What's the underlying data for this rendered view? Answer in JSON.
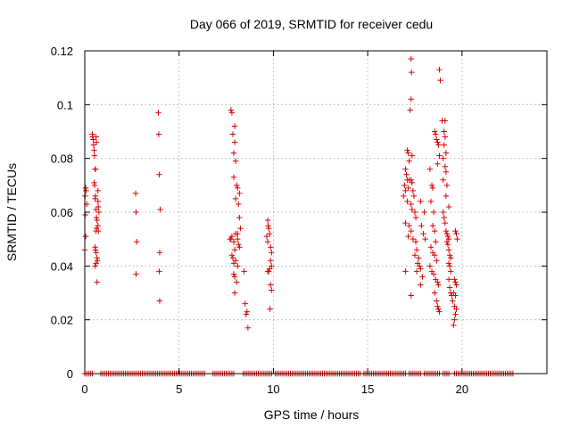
{
  "chart_data": {
    "type": "scatter",
    "title": "Day 066 of 2019, SRMTID for receiver cedu",
    "xlabel": "GPS time / hours",
    "ylabel": "SRMTID / TECUs",
    "xlim": [
      0,
      24.5
    ],
    "ylim": [
      0,
      0.12
    ],
    "xticks": [
      0,
      5,
      10,
      15,
      20
    ],
    "xtick_labels": [
      "0",
      "5",
      "10",
      "15",
      "20"
    ],
    "yticks": [
      0,
      0.02,
      0.04,
      0.06,
      0.08,
      0.1,
      0.12
    ],
    "ytick_labels": [
      "0",
      "0.02",
      "0.04",
      "0.06",
      "0.08",
      "0.1",
      "0.12"
    ],
    "grid": true,
    "marker": "+",
    "color": "#dd0000",
    "zero_value_ranges_hours": [
      [
        0,
        0.4
      ],
      [
        0.85,
        6.4
      ],
      [
        6.8,
        7.9
      ],
      [
        8.4,
        9.9
      ],
      [
        10.1,
        14.6
      ],
      [
        14.8,
        17.0
      ],
      [
        17.2,
        17.8
      ],
      [
        18.0,
        18.8
      ],
      [
        19.0,
        19.3
      ],
      [
        19.6,
        22.7
      ]
    ],
    "zero_step_hours": 0.1,
    "series": [
      {
        "name": "SRMTID",
        "points": [
          [
            0.0,
            0.046
          ],
          [
            0.02,
            0.066
          ],
          [
            0.03,
            0.059
          ],
          [
            0.05,
            0.069
          ],
          [
            0.05,
            0.051
          ],
          [
            0.07,
            0.068
          ],
          [
            0.1,
            0.063
          ],
          [
            0.4,
            0.089
          ],
          [
            0.42,
            0.088
          ],
          [
            0.45,
            0.087
          ],
          [
            0.47,
            0.085
          ],
          [
            0.5,
            0.083
          ],
          [
            0.52,
            0.081
          ],
          [
            0.5,
            0.071
          ],
          [
            0.52,
            0.07
          ],
          [
            0.55,
            0.076
          ],
          [
            0.57,
            0.076
          ],
          [
            0.6,
            0.088
          ],
          [
            0.62,
            0.086
          ],
          [
            0.55,
            0.065
          ],
          [
            0.57,
            0.066
          ],
          [
            0.6,
            0.061
          ],
          [
            0.62,
            0.058
          ],
          [
            0.65,
            0.057
          ],
          [
            0.6,
            0.053
          ],
          [
            0.62,
            0.054
          ],
          [
            0.55,
            0.047
          ],
          [
            0.57,
            0.046
          ],
          [
            0.6,
            0.045
          ],
          [
            0.65,
            0.043
          ],
          [
            0.67,
            0.042
          ],
          [
            0.55,
            0.04
          ],
          [
            0.6,
            0.041
          ],
          [
            0.65,
            0.034
          ],
          [
            0.7,
            0.068
          ],
          [
            0.7,
            0.064
          ],
          [
            0.72,
            0.062
          ],
          [
            0.75,
            0.06
          ],
          [
            0.7,
            0.055
          ],
          [
            0.72,
            0.053
          ],
          [
            2.7,
            0.067
          ],
          [
            2.72,
            0.06
          ],
          [
            2.75,
            0.049
          ],
          [
            2.72,
            0.037
          ],
          [
            3.9,
            0.097
          ],
          [
            3.92,
            0.089
          ],
          [
            3.95,
            0.074
          ],
          [
            4.0,
            0.061
          ],
          [
            3.97,
            0.045
          ],
          [
            3.95,
            0.038
          ],
          [
            3.97,
            0.027
          ],
          [
            7.75,
            0.098
          ],
          [
            7.8,
            0.097
          ],
          [
            7.95,
            0.092
          ],
          [
            7.85,
            0.089
          ],
          [
            7.95,
            0.086
          ],
          [
            7.9,
            0.082
          ],
          [
            8.0,
            0.079
          ],
          [
            7.9,
            0.073
          ],
          [
            8.05,
            0.07
          ],
          [
            8.1,
            0.069
          ],
          [
            8.2,
            0.067
          ],
          [
            8.0,
            0.065
          ],
          [
            8.15,
            0.063
          ],
          [
            8.2,
            0.058
          ],
          [
            8.25,
            0.054
          ],
          [
            8.1,
            0.052
          ],
          [
            7.7,
            0.05
          ],
          [
            7.75,
            0.05
          ],
          [
            7.8,
            0.051
          ],
          [
            7.9,
            0.049
          ],
          [
            8.0,
            0.052
          ],
          [
            8.1,
            0.05
          ],
          [
            8.15,
            0.048
          ],
          [
            8.2,
            0.047
          ],
          [
            7.95,
            0.046
          ],
          [
            7.8,
            0.044
          ],
          [
            7.85,
            0.043
          ],
          [
            7.9,
            0.041
          ],
          [
            8.0,
            0.042
          ],
          [
            8.1,
            0.04
          ],
          [
            7.9,
            0.037
          ],
          [
            7.95,
            0.036
          ],
          [
            8.05,
            0.034
          ],
          [
            7.95,
            0.03
          ],
          [
            8.45,
            0.038
          ],
          [
            8.5,
            0.026
          ],
          [
            8.55,
            0.022
          ],
          [
            8.6,
            0.023
          ],
          [
            8.65,
            0.017
          ],
          [
            9.7,
            0.057
          ],
          [
            9.72,
            0.055
          ],
          [
            9.75,
            0.054
          ],
          [
            9.65,
            0.051
          ],
          [
            9.7,
            0.049
          ],
          [
            9.8,
            0.052
          ],
          [
            9.85,
            0.047
          ],
          [
            9.9,
            0.045
          ],
          [
            9.85,
            0.042
          ],
          [
            9.9,
            0.04
          ],
          [
            9.8,
            0.039
          ],
          [
            9.75,
            0.038
          ],
          [
            9.7,
            0.038
          ],
          [
            9.85,
            0.033
          ],
          [
            9.9,
            0.031
          ],
          [
            9.82,
            0.024
          ],
          [
            17.3,
            0.117
          ],
          [
            17.32,
            0.112
          ],
          [
            17.3,
            0.102
          ],
          [
            17.25,
            0.098
          ],
          [
            17.1,
            0.083
          ],
          [
            17.15,
            0.082
          ],
          [
            17.2,
            0.079
          ],
          [
            17.35,
            0.081
          ],
          [
            17.0,
            0.076
          ],
          [
            17.05,
            0.074
          ],
          [
            17.1,
            0.072
          ],
          [
            17.2,
            0.072
          ],
          [
            17.3,
            0.072
          ],
          [
            17.35,
            0.071
          ],
          [
            16.95,
            0.07
          ],
          [
            17.0,
            0.068
          ],
          [
            17.15,
            0.069
          ],
          [
            17.4,
            0.068
          ],
          [
            17.45,
            0.066
          ],
          [
            16.9,
            0.066
          ],
          [
            17.1,
            0.064
          ],
          [
            17.3,
            0.063
          ],
          [
            17.35,
            0.061
          ],
          [
            17.5,
            0.06
          ],
          [
            17.55,
            0.058
          ],
          [
            17.0,
            0.056
          ],
          [
            17.2,
            0.055
          ],
          [
            17.3,
            0.053
          ],
          [
            17.15,
            0.051
          ],
          [
            17.4,
            0.05
          ],
          [
            17.55,
            0.049
          ],
          [
            17.6,
            0.046
          ],
          [
            17.5,
            0.044
          ],
          [
            17.7,
            0.043
          ],
          [
            17.65,
            0.041
          ],
          [
            17.75,
            0.04
          ],
          [
            17.8,
            0.039
          ],
          [
            17.6,
            0.038
          ],
          [
            17.9,
            0.036
          ],
          [
            17.0,
            0.038
          ],
          [
            17.8,
            0.033
          ],
          [
            17.3,
            0.029
          ],
          [
            17.8,
            0.064
          ],
          [
            18.0,
            0.06
          ],
          [
            17.85,
            0.055
          ],
          [
            17.95,
            0.052
          ],
          [
            18.05,
            0.05
          ],
          [
            18.3,
            0.076
          ],
          [
            18.4,
            0.07
          ],
          [
            18.45,
            0.069
          ],
          [
            18.35,
            0.064
          ],
          [
            18.5,
            0.06
          ],
          [
            18.45,
            0.055
          ],
          [
            18.55,
            0.053
          ],
          [
            18.6,
            0.049
          ],
          [
            18.35,
            0.047
          ],
          [
            18.45,
            0.045
          ],
          [
            18.55,
            0.044
          ],
          [
            18.65,
            0.042
          ],
          [
            18.3,
            0.04
          ],
          [
            18.4,
            0.038
          ],
          [
            18.5,
            0.037
          ],
          [
            18.6,
            0.035
          ],
          [
            18.7,
            0.034
          ],
          [
            18.75,
            0.033
          ],
          [
            18.55,
            0.03
          ],
          [
            18.65,
            0.027
          ],
          [
            18.7,
            0.025
          ],
          [
            18.75,
            0.024
          ],
          [
            18.8,
            0.023
          ],
          [
            18.8,
            0.113
          ],
          [
            18.85,
            0.109
          ],
          [
            18.95,
            0.094
          ],
          [
            18.55,
            0.09
          ],
          [
            18.6,
            0.089
          ],
          [
            18.65,
            0.087
          ],
          [
            18.7,
            0.086
          ],
          [
            18.75,
            0.085
          ],
          [
            18.8,
            0.081
          ],
          [
            18.7,
            0.078
          ],
          [
            19.1,
            0.094
          ],
          [
            19.05,
            0.09
          ],
          [
            19.1,
            0.088
          ],
          [
            19.05,
            0.085
          ],
          [
            19.15,
            0.082
          ],
          [
            19.0,
            0.08
          ],
          [
            19.1,
            0.077
          ],
          [
            19.15,
            0.075
          ],
          [
            19.0,
            0.072
          ],
          [
            19.2,
            0.07
          ],
          [
            19.15,
            0.066
          ],
          [
            19.3,
            0.062
          ],
          [
            19.0,
            0.06
          ],
          [
            19.05,
            0.058
          ],
          [
            19.1,
            0.056
          ],
          [
            19.15,
            0.053
          ],
          [
            19.2,
            0.052
          ],
          [
            19.25,
            0.051
          ],
          [
            19.3,
            0.05
          ],
          [
            19.2,
            0.049
          ],
          [
            19.25,
            0.048
          ],
          [
            19.3,
            0.046
          ],
          [
            19.35,
            0.044
          ],
          [
            19.4,
            0.043
          ],
          [
            19.3,
            0.041
          ],
          [
            19.35,
            0.04
          ],
          [
            19.4,
            0.038
          ],
          [
            19.3,
            0.035
          ],
          [
            19.35,
            0.032
          ],
          [
            19.4,
            0.03
          ],
          [
            19.45,
            0.029
          ],
          [
            19.5,
            0.027
          ],
          [
            19.6,
            0.035
          ],
          [
            19.65,
            0.034
          ],
          [
            19.7,
            0.033
          ],
          [
            19.55,
            0.03
          ],
          [
            19.65,
            0.029
          ],
          [
            19.6,
            0.025
          ],
          [
            19.7,
            0.024
          ],
          [
            19.65,
            0.022
          ],
          [
            19.6,
            0.02
          ],
          [
            19.55,
            0.018
          ],
          [
            19.65,
            0.053
          ],
          [
            19.7,
            0.052
          ],
          [
            19.75,
            0.05
          ]
        ]
      }
    ]
  }
}
